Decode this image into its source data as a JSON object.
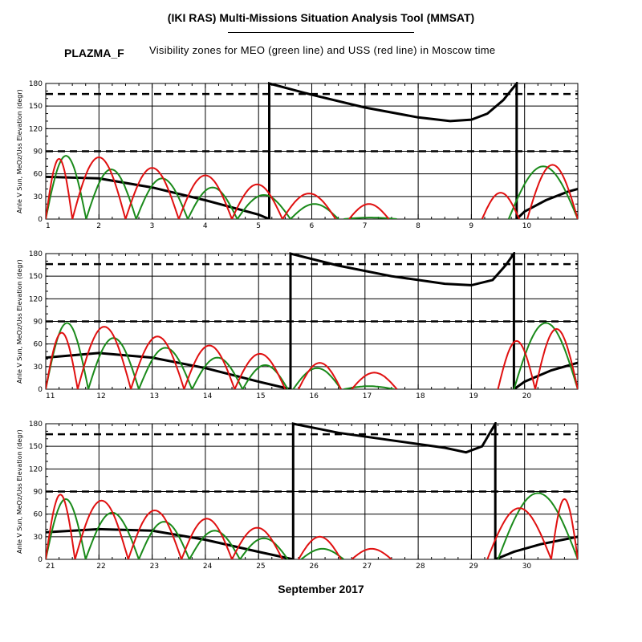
{
  "header": {
    "title": "(IKI RAS) Multi-Missions Situation Analysis Tool (MMSAT)",
    "tool_name": "PLAZMA_F",
    "subtitle": "Visibility zones for MEO (green line) and USS (red line) in Moscow time"
  },
  "footer": {
    "xlabel": "September 2017"
  },
  "colors": {
    "meo": "#1a8a1a",
    "uss": "#e01010",
    "sun_angle": "#000000",
    "grid": "#000000"
  },
  "chart_data": [
    {
      "type": "line",
      "ylabel": "Anle V Sun, MeOz/Uss Elevation (degr)",
      "xlim": [
        1,
        11
      ],
      "ylim": [
        0,
        180
      ],
      "xticks": [
        1,
        2,
        3,
        4,
        5,
        6,
        7,
        8,
        9,
        10
      ],
      "yticks": [
        0,
        30,
        60,
        90,
        120,
        150,
        180
      ],
      "reference_lines": [
        90,
        166
      ],
      "series": [
        {
          "key": "sun",
          "points": [
            [
              1.0,
              56
            ],
            [
              2.0,
              54
            ],
            [
              3.0,
              42
            ],
            [
              4.0,
              25
            ],
            [
              5.0,
              6
            ],
            [
              5.2,
              0
            ],
            [
              5.2,
              180
            ],
            [
              6.0,
              165
            ],
            [
              7.0,
              148
            ],
            [
              8.0,
              135
            ],
            [
              8.6,
              130
            ],
            [
              9.0,
              132
            ],
            [
              9.3,
              140
            ],
            [
              9.6,
              158
            ],
            [
              9.85,
              180
            ],
            [
              9.85,
              0
            ],
            [
              10.0,
              10
            ],
            [
              10.4,
              25
            ],
            [
              10.8,
              36
            ],
            [
              11.0,
              40
            ]
          ]
        },
        {
          "key": "meo",
          "arches": [
            [
              1.0,
              1.76,
              84
            ],
            [
              1.76,
              2.7,
              66
            ],
            [
              2.7,
              3.67,
              54
            ],
            [
              3.67,
              4.6,
              42
            ],
            [
              4.6,
              5.6,
              32
            ],
            [
              5.6,
              6.5,
              20
            ],
            [
              6.6,
              7.6,
              2
            ],
            [
              9.7,
              11.0,
              70
            ]
          ]
        },
        {
          "key": "uss",
          "arches": [
            [
              1.0,
              1.5,
              80
            ],
            [
              1.5,
              2.5,
              82
            ],
            [
              2.5,
              3.5,
              68
            ],
            [
              3.5,
              4.5,
              58
            ],
            [
              4.5,
              5.45,
              46
            ],
            [
              5.45,
              6.45,
              34
            ],
            [
              6.7,
              7.45,
              20
            ],
            [
              9.2,
              9.9,
              35
            ],
            [
              10.05,
              11.0,
              72
            ]
          ]
        }
      ]
    },
    {
      "type": "line",
      "ylabel": "Anle V Sun, MeOz/Uss Elevation (degr)",
      "xlim": [
        11,
        21
      ],
      "ylim": [
        0,
        180
      ],
      "xticks": [
        11,
        12,
        13,
        14,
        15,
        16,
        17,
        18,
        19,
        20
      ],
      "yticks": [
        0,
        30,
        60,
        90,
        120,
        150,
        180
      ],
      "reference_lines": [
        90,
        166
      ],
      "series": [
        {
          "key": "sun",
          "points": [
            [
              11.0,
              42
            ],
            [
              12.0,
              48
            ],
            [
              13.0,
              42
            ],
            [
              14.0,
              28
            ],
            [
              15.0,
              10
            ],
            [
              15.6,
              0
            ],
            [
              15.6,
              180
            ],
            [
              16.5,
              164
            ],
            [
              17.5,
              150
            ],
            [
              18.5,
              140
            ],
            [
              19.0,
              138
            ],
            [
              19.4,
              145
            ],
            [
              19.65,
              165
            ],
            [
              19.8,
              180
            ],
            [
              19.8,
              0
            ],
            [
              20.0,
              10
            ],
            [
              20.5,
              25
            ],
            [
              21.0,
              35
            ]
          ]
        },
        {
          "key": "meo",
          "arches": [
            [
              11.0,
              11.8,
              88
            ],
            [
              11.8,
              12.75,
              68
            ],
            [
              12.75,
              13.75,
              55
            ],
            [
              13.75,
              14.7,
              42
            ],
            [
              14.7,
              15.55,
              32
            ],
            [
              15.65,
              16.55,
              28
            ],
            [
              16.6,
              17.55,
              4
            ],
            [
              19.8,
              21.0,
              88
            ]
          ]
        },
        {
          "key": "uss",
          "arches": [
            [
              11.0,
              11.6,
              75
            ],
            [
              11.6,
              12.6,
              83
            ],
            [
              12.6,
              13.6,
              70
            ],
            [
              13.6,
              14.55,
              58
            ],
            [
              14.55,
              15.5,
              47
            ],
            [
              15.75,
              16.55,
              35
            ],
            [
              16.75,
              17.6,
              22
            ],
            [
              19.5,
              20.2,
              64
            ],
            [
              20.2,
              21.0,
              80
            ]
          ]
        }
      ]
    },
    {
      "type": "line",
      "ylabel": "Anle V Sun, MeOz/Uss Elevation (degr)",
      "xlim": [
        21,
        31
      ],
      "ylim": [
        0,
        180
      ],
      "xticks": [
        21,
        22,
        23,
        24,
        25,
        26,
        27,
        28,
        29,
        30
      ],
      "yticks": [
        0,
        30,
        60,
        90,
        120,
        150,
        180
      ],
      "reference_lines": [
        90,
        166
      ],
      "series": [
        {
          "key": "sun",
          "points": [
            [
              21.0,
              36
            ],
            [
              22.0,
              40
            ],
            [
              23.0,
              38
            ],
            [
              24.0,
              26
            ],
            [
              25.0,
              10
            ],
            [
              25.65,
              0
            ],
            [
              25.65,
              180
            ],
            [
              26.5,
              168
            ],
            [
              27.5,
              158
            ],
            [
              28.5,
              148
            ],
            [
              28.9,
              142
            ],
            [
              29.2,
              150
            ],
            [
              29.45,
              180
            ],
            [
              29.45,
              0
            ],
            [
              29.8,
              10
            ],
            [
              30.3,
              20
            ],
            [
              31.0,
              30
            ]
          ]
        },
        {
          "key": "meo",
          "arches": [
            [
              21.0,
              21.75,
              80
            ],
            [
              21.75,
              22.75,
              62
            ],
            [
              22.75,
              23.7,
              50
            ],
            [
              23.7,
              24.65,
              38
            ],
            [
              24.65,
              25.55,
              28
            ],
            [
              25.8,
              26.6,
              14
            ],
            [
              29.5,
              31.0,
              88
            ]
          ]
        },
        {
          "key": "uss",
          "arches": [
            [
              21.0,
              21.55,
              86
            ],
            [
              21.55,
              22.55,
              78
            ],
            [
              22.55,
              23.55,
              65
            ],
            [
              23.55,
              24.5,
              54
            ],
            [
              24.5,
              25.45,
              42
            ],
            [
              25.75,
              26.55,
              30
            ],
            [
              26.75,
              27.5,
              14
            ],
            [
              29.3,
              30.5,
              68
            ],
            [
              30.5,
              31.0,
              80
            ]
          ]
        }
      ]
    }
  ]
}
